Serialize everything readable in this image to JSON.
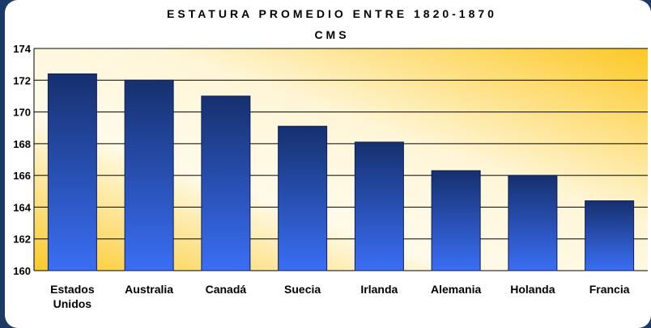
{
  "chart_data": {
    "type": "bar",
    "title": "ESTATURA PROMEDIO ENTRE 1820-1870",
    "subtitle": "CMS",
    "categories": [
      "Estados Unidos",
      "Australia",
      "Canadá",
      "Suecia",
      "Irlanda",
      "Alemania",
      "Holanda",
      "Francia"
    ],
    "values": [
      172.4,
      172,
      171,
      169.1,
      168.1,
      166.3,
      166,
      164.4
    ],
    "color": "#2a5ad8",
    "ylim": [
      160,
      174
    ],
    "yticks": [
      160,
      162,
      164,
      166,
      168,
      170,
      172,
      174
    ],
    "grid": true
  }
}
